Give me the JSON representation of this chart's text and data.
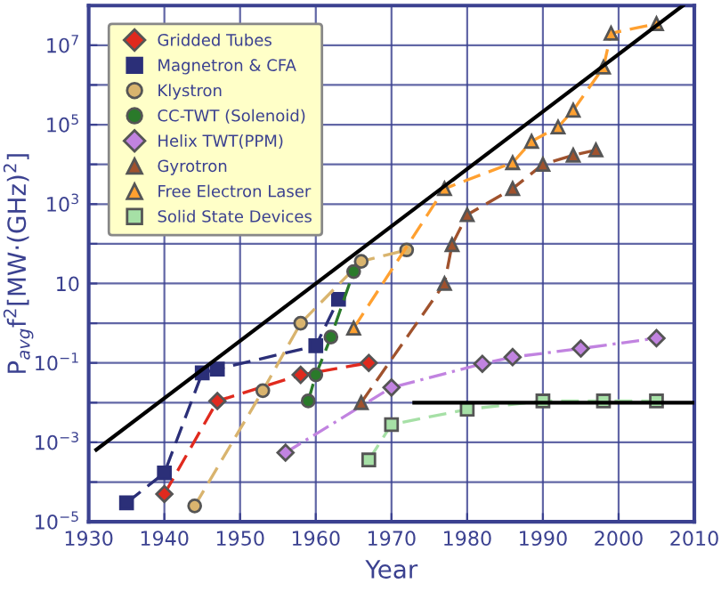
{
  "chart_data": {
    "type": "line",
    "xlabel": "Year",
    "ylabel": "P$_{avg}$f$^{2}$[MW·(GHz)$^{2}$]",
    "xlim": [
      1930,
      2010
    ],
    "xticks": [
      1930,
      1940,
      1950,
      1960,
      1970,
      1980,
      1990,
      2000,
      2010
    ],
    "ylim": [
      1e-05,
      100000000.0
    ],
    "log": true,
    "yticks": [
      {
        "value": 1e-05,
        "label": "10$^{−5}$"
      },
      {
        "value": 0.0001,
        "label": null
      },
      {
        "value": 0.001,
        "label": "10$^{−3}$"
      },
      {
        "value": 0.01,
        "label": null
      },
      {
        "value": 0.1,
        "label": "10$^{−1}$"
      },
      {
        "value": 1,
        "label": null
      },
      {
        "value": 10,
        "label": "10"
      },
      {
        "value": 100,
        "label": null
      },
      {
        "value": 1000,
        "label": "10$^{3}$"
      },
      {
        "value": 10000.0,
        "label": null
      },
      {
        "value": 100000.0,
        "label": "10$^{5}$"
      },
      {
        "value": 1000000.0,
        "label": null
      },
      {
        "value": 10000000.0,
        "label": "10$^{7}$"
      }
    ],
    "grid": true,
    "legend": "top left",
    "series": [
      {
        "name": "Gridded Tubes",
        "color": "#e02a1e",
        "marker": "diamond",
        "line_style": "dashed",
        "x": [
          1940,
          1947,
          1958,
          1967
        ],
        "values": [
          5e-05,
          0.011,
          0.05,
          0.1
        ]
      },
      {
        "name": "Magnetron & CFA",
        "color": "#2b2f78",
        "marker": "square",
        "line_style": "dashed",
        "x": [
          1935,
          1940,
          1945,
          1947,
          1960,
          1963
        ],
        "values": [
          3e-05,
          0.00017,
          0.056,
          0.07,
          0.27,
          4
        ]
      },
      {
        "name": "Klystron",
        "color": "#d9b46e",
        "marker": "circle",
        "line_style": "dashed",
        "x": [
          1944,
          1953,
          1958,
          1966,
          1972
        ],
        "values": [
          2.5e-05,
          0.02,
          1,
          36,
          70
        ]
      },
      {
        "name": "CC-TWT (Solenoid)",
        "color": "#2a7a2a",
        "marker": "circle",
        "line_style": "dashed",
        "x": [
          1959,
          1960,
          1962,
          1965
        ],
        "values": [
          0.011,
          0.05,
          0.45,
          20
        ]
      },
      {
        "name": "Helix TWT(PPM)",
        "color": "#c183e0",
        "marker": "diamond",
        "line_style": "dashdot",
        "x": [
          1956,
          1970,
          1982,
          1986,
          1995,
          2005
        ],
        "values": [
          0.00055,
          0.024,
          0.095,
          0.14,
          0.23,
          0.42
        ]
      },
      {
        "name": "Gyrotron",
        "color": "#a0522d",
        "marker": "triangle",
        "line_style": "dashed",
        "x": [
          1966,
          1977,
          1978,
          1980,
          1986,
          1990,
          1994,
          1997
        ],
        "values": [
          0.01,
          10,
          95,
          540,
          2450,
          10000.0,
          17000.0,
          23000.0
        ]
      },
      {
        "name": "Free Electron Laser",
        "color": "#ffa030",
        "marker": "triangle",
        "line_style": "dashed",
        "x": [
          1965,
          1977,
          1986,
          1988.5,
          1992,
          1994,
          1998,
          1999,
          2005
        ],
        "values": [
          0.75,
          2450,
          11000.0,
          38000.0,
          87000.0,
          230000.0,
          2800000.0,
          20000000.0,
          35000000.0
        ]
      },
      {
        "name": "Solid State Devices",
        "color": "#a6e0a6",
        "marker": "square",
        "line_style": "dashed",
        "x": [
          1967,
          1970,
          1980,
          1990,
          1998,
          2005
        ],
        "values": [
          0.00036,
          0.0028,
          0.0068,
          0.011,
          0.011,
          0.011
        ]
      },
      {
        "color": "#000000",
        "marker": "none",
        "line_style": "solid",
        "x": [
          1931,
          2008.5
        ],
        "values": [
          0.00065,
          100000000.0
        ]
      },
      {
        "color": "#000000",
        "marker": "none",
        "line_style": "solid",
        "x": [
          1973,
          2010
        ],
        "values": [
          0.01,
          0.01
        ]
      }
    ]
  }
}
